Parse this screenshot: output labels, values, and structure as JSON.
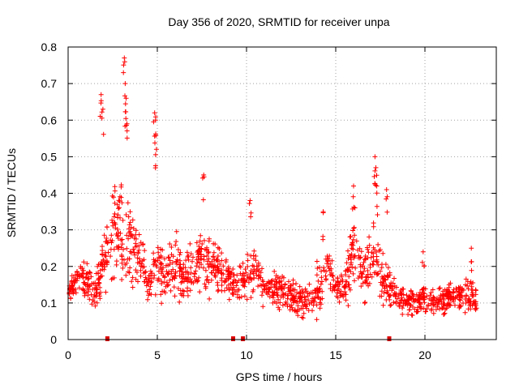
{
  "chart_data": {
    "type": "scatter",
    "title": "Day 356 of 2020, SRMTID for receiver unpa",
    "xlabel": "GPS time / hours",
    "ylabel": "SRMTID / TECUs",
    "xlim": [
      0,
      24
    ],
    "ylim": [
      0,
      0.8
    ],
    "xticks": [
      0,
      5,
      10,
      15,
      20
    ],
    "xtick_labels": [
      "0",
      "5",
      "10",
      "15",
      "20"
    ],
    "yticks": [
      0,
      0.1,
      0.2,
      0.3,
      0.4,
      0.5,
      0.6,
      0.7,
      0.8
    ],
    "ytick_labels": [
      "0",
      "0.1",
      "0.2",
      "0.3",
      "0.4",
      "0.5",
      "0.6",
      "0.7",
      "0.8"
    ],
    "grid": true,
    "marker": "+",
    "series_color": "#ff0000",
    "data_gap_markers_x": [
      2.2,
      9.25,
      9.8,
      18.0
    ],
    "envelope_hours": [
      0,
      0.5,
      1,
      1.5,
      2,
      2.5,
      3,
      3.5,
      4,
      4.5,
      5,
      5.5,
      6,
      6.5,
      7,
      7.5,
      8,
      8.5,
      9,
      9.5,
      10,
      10.5,
      11,
      11.5,
      12,
      12.5,
      13,
      13.5,
      14,
      14.5,
      15,
      15.5,
      16,
      16.5,
      17,
      17.5,
      18,
      18.5,
      19,
      19.5,
      20,
      20.5,
      21,
      21.5,
      22,
      22.5,
      22.9
    ],
    "envelope_center": [
      0.13,
      0.17,
      0.16,
      0.12,
      0.22,
      0.3,
      0.3,
      0.26,
      0.24,
      0.15,
      0.2,
      0.17,
      0.22,
      0.16,
      0.2,
      0.22,
      0.2,
      0.2,
      0.16,
      0.15,
      0.17,
      0.2,
      0.14,
      0.14,
      0.13,
      0.12,
      0.11,
      0.1,
      0.14,
      0.2,
      0.14,
      0.14,
      0.25,
      0.16,
      0.22,
      0.18,
      0.14,
      0.12,
      0.1,
      0.1,
      0.11,
      0.1,
      0.11,
      0.12,
      0.12,
      0.13,
      0.1
    ],
    "envelope_spread": [
      0.04,
      0.06,
      0.06,
      0.05,
      0.12,
      0.18,
      0.22,
      0.16,
      0.12,
      0.08,
      0.12,
      0.1,
      0.12,
      0.09,
      0.1,
      0.12,
      0.1,
      0.1,
      0.07,
      0.08,
      0.1,
      0.08,
      0.07,
      0.07,
      0.07,
      0.06,
      0.06,
      0.06,
      0.1,
      0.08,
      0.07,
      0.07,
      0.15,
      0.09,
      0.15,
      0.1,
      0.07,
      0.05,
      0.05,
      0.05,
      0.05,
      0.05,
      0.05,
      0.05,
      0.06,
      0.07,
      0.05
    ],
    "peaks": [
      {
        "x": 1.85,
        "y": 0.67
      },
      {
        "x": 1.95,
        "y": 0.63
      },
      {
        "x": 3.15,
        "y": 0.77
      },
      {
        "x": 3.2,
        "y": 0.7
      },
      {
        "x": 3.25,
        "y": 0.66
      },
      {
        "x": 3.3,
        "y": 0.59
      },
      {
        "x": 4.85,
        "y": 0.62
      },
      {
        "x": 4.9,
        "y": 0.6
      },
      {
        "x": 4.95,
        "y": 0.52
      },
      {
        "x": 7.6,
        "y": 0.45
      },
      {
        "x": 10.2,
        "y": 0.38
      },
      {
        "x": 14.3,
        "y": 0.35
      },
      {
        "x": 16.0,
        "y": 0.42
      },
      {
        "x": 17.2,
        "y": 0.5
      },
      {
        "x": 17.25,
        "y": 0.47
      },
      {
        "x": 17.3,
        "y": 0.42
      },
      {
        "x": 17.85,
        "y": 0.41
      },
      {
        "x": 19.9,
        "y": 0.24
      },
      {
        "x": 22.6,
        "y": 0.25
      }
    ]
  }
}
